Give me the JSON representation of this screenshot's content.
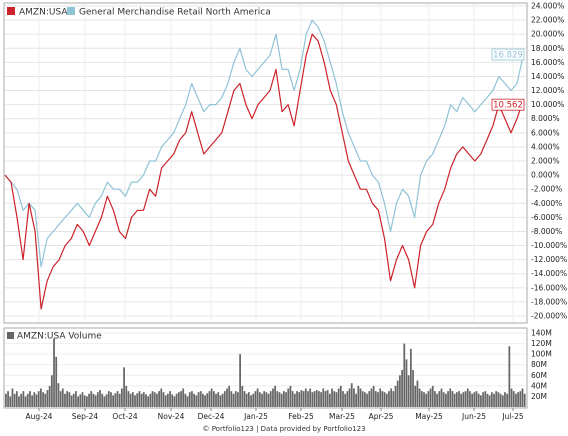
{
  "legend": [
    {
      "label": "AMZN:USA",
      "color": "#cc2229"
    },
    {
      "label": "General Merchandise Retail North America",
      "color": "#8fc3d6"
    }
  ],
  "credit": "© Portfolio123 | Data provided by Portfolio123",
  "chart_data": [
    {
      "type": "line",
      "x_labels": [
        "Aug-24",
        "Sep-24",
        "Oct-24",
        "Nov-24",
        "Dec-24",
        "Jan-25",
        "Feb-25",
        "Mar-25",
        "Apr-25",
        "May-25",
        "Jun-25",
        "Jul-25"
      ],
      "y_ticks": [
        "24.000%",
        "22.000%",
        "20.000%",
        "18.000%",
        "16.000%",
        "14.000%",
        "12.000%",
        "10.000%",
        "8.000%",
        "6.000%",
        "4.000%",
        "2.000%",
        "0.000%",
        "-2.000%",
        "-4.000%",
        "-6.000%",
        "-8.000%",
        "-10.000%",
        "-12.000%",
        "-14.000%",
        "-16.000%",
        "-18.000%",
        "-20.000%"
      ],
      "ylim": [
        -21,
        24.2
      ],
      "grid": true,
      "legend_position": "top-left",
      "end_labels": [
        {
          "series": "General Merchandise Retail North America",
          "text": "16.829",
          "color": "#8fc3d6"
        },
        {
          "series": "AMZN:USA",
          "text": "10.562",
          "color": "#cc2229"
        }
      ],
      "series": [
        {
          "name": "AMZN:USA",
          "color": "#cc2229",
          "values": [
            0,
            -1,
            -6,
            -12,
            -4,
            -8,
            -19,
            -15,
            -13,
            -12,
            -10,
            -9,
            -7,
            -8,
            -10,
            -8,
            -6,
            -3,
            -5,
            -8,
            -9,
            -6,
            -5,
            -5,
            -2,
            -3,
            1,
            2,
            3,
            5,
            6,
            9,
            6,
            3,
            4,
            5,
            6,
            9,
            12,
            13,
            10,
            8,
            10,
            11,
            12,
            15,
            9,
            10,
            7,
            12,
            17,
            20,
            19,
            16,
            12,
            10,
            6,
            2,
            0,
            -2,
            -2,
            -4,
            -5,
            -9,
            -15,
            -12,
            -10,
            -12,
            -16,
            -10,
            -8,
            -7,
            -4,
            -2,
            1,
            3,
            4,
            3,
            2,
            3,
            5,
            7,
            10,
            8,
            6,
            8,
            10.562
          ]
        },
        {
          "name": "General Merchandise Retail North America",
          "color": "#8fc3d6",
          "values": [
            0,
            -1,
            -2,
            -5,
            -4,
            -5,
            -13,
            -9,
            -8,
            -7,
            -6,
            -5,
            -4,
            -5,
            -6,
            -4,
            -3,
            -1,
            -2,
            -2,
            -3,
            -1,
            -1,
            0,
            2,
            2,
            4,
            5,
            6,
            8,
            10,
            13,
            11,
            9,
            10,
            10,
            11,
            13,
            16,
            18,
            15,
            14,
            15,
            16,
            17,
            20,
            15,
            15,
            12,
            15,
            20,
            22,
            21,
            19,
            16,
            13,
            9,
            6,
            4,
            2,
            2,
            0,
            -1,
            -4,
            -8,
            -4,
            -2,
            -3,
            -6,
            0,
            2,
            3,
            5,
            7,
            10,
            9,
            11,
            10,
            9,
            10,
            11,
            12,
            14,
            13,
            12,
            13,
            16.829
          ]
        }
      ]
    },
    {
      "type": "bar",
      "title": "AMZN:USA Volume",
      "y_ticks": [
        "140M",
        "120M",
        "100M",
        "80M",
        "60M",
        "40M",
        "20M"
      ],
      "ylim": [
        0,
        140
      ],
      "color": "#666666",
      "values": [
        25,
        30,
        20,
        35,
        25,
        30,
        20,
        25,
        30,
        20,
        25,
        30,
        22,
        28,
        24,
        30,
        35,
        28,
        25,
        32,
        40,
        60,
        130,
        95,
        45,
        30,
        35,
        25,
        30,
        28,
        22,
        25,
        30,
        20,
        24,
        28,
        22,
        20,
        25,
        30,
        25,
        22,
        28,
        32,
        25,
        20,
        24,
        30,
        28,
        22,
        26,
        30,
        25,
        35,
        75,
        40,
        30,
        25,
        28,
        22,
        26,
        30,
        25,
        28,
        24,
        20,
        25,
        30,
        28,
        25,
        30,
        35,
        28,
        22,
        25,
        30,
        24,
        20,
        25,
        28,
        30,
        35,
        25,
        20,
        28,
        30,
        25,
        22,
        28,
        30,
        25,
        22,
        26,
        30,
        35,
        30,
        25,
        28,
        22,
        25,
        30,
        35,
        40,
        30,
        25,
        30,
        28,
        100,
        40,
        30,
        25,
        28,
        22,
        25,
        30,
        35,
        28,
        25,
        30,
        28,
        25,
        30,
        35,
        40,
        30,
        28,
        25,
        30,
        28,
        35,
        40,
        30,
        25,
        30,
        28,
        32,
        30,
        35,
        30,
        35,
        28,
        30,
        32,
        30,
        28,
        35,
        30,
        32,
        25,
        35,
        30,
        28,
        35,
        40,
        30,
        25,
        30,
        35,
        45,
        35,
        25,
        40,
        35,
        30,
        28,
        25,
        30,
        35,
        40,
        30,
        28,
        35,
        30,
        28,
        25,
        30,
        35,
        30,
        40,
        50,
        60,
        70,
        120,
        90,
        60,
        110,
        70,
        40,
        50,
        35,
        30,
        28,
        25,
        30,
        35,
        40,
        30,
        25,
        30,
        35,
        28,
        25,
        30,
        35,
        30,
        25,
        28,
        30,
        25,
        28,
        30,
        35,
        30,
        25,
        28,
        30,
        25,
        22,
        28,
        30,
        25,
        22,
        28,
        25,
        30,
        28,
        25,
        22,
        28,
        25,
        115,
        35,
        30,
        25,
        28,
        30,
        35,
        25
      ]
    }
  ]
}
